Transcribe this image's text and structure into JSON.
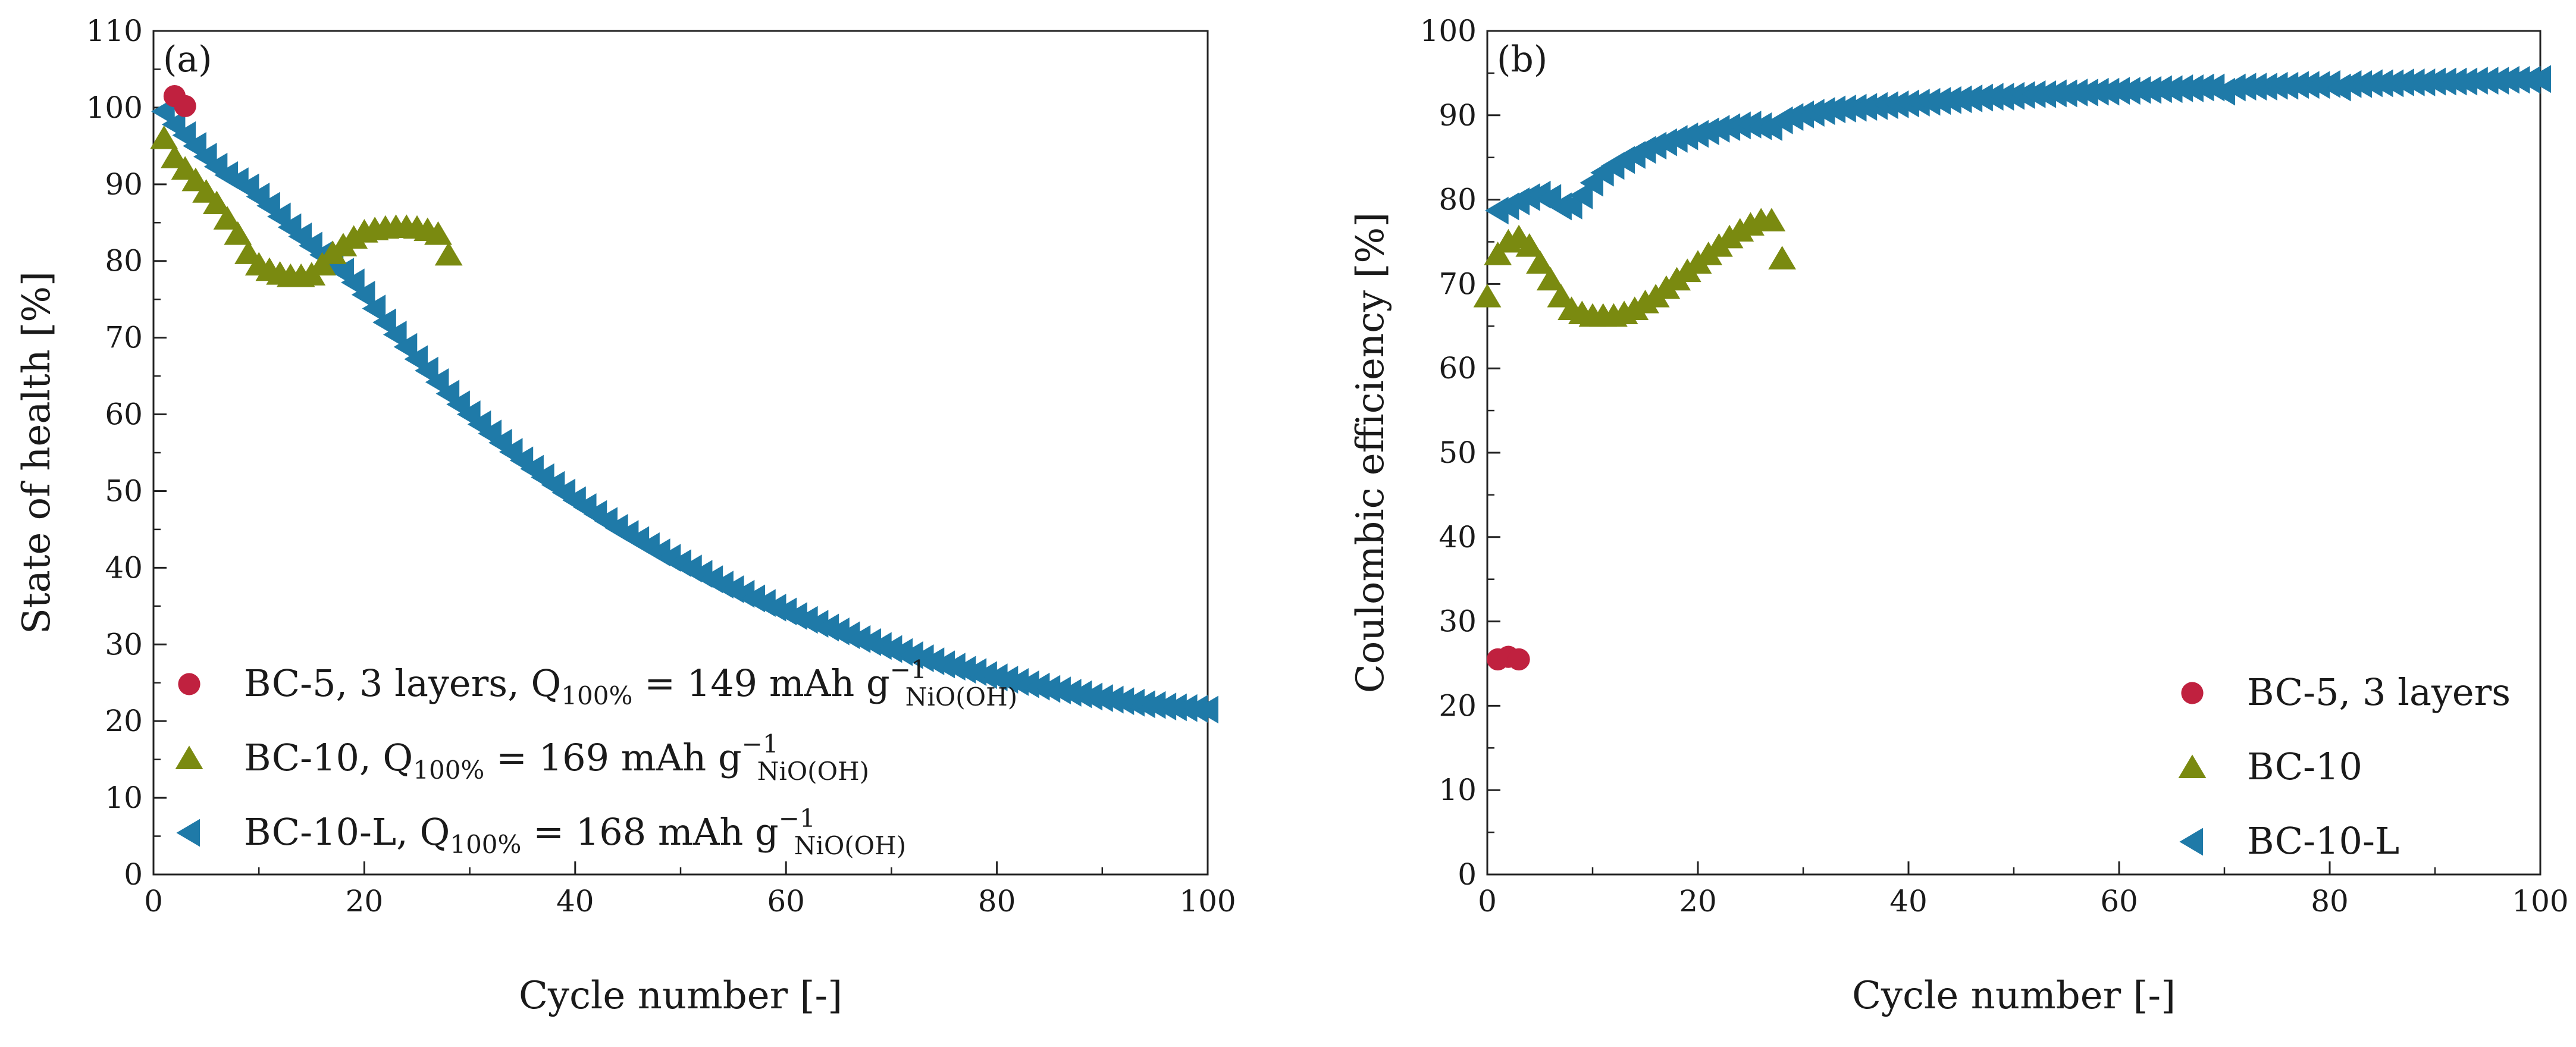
{
  "colors": {
    "bc5": "#c0213f",
    "bc10": "#7a8a10",
    "bc10l": "#1f7aa8"
  },
  "chart_data": [
    {
      "type": "scatter",
      "panel_label": "(a)",
      "xlabel": "Cycle number [-]",
      "ylabel": "State of health [%]",
      "xlim": [
        0,
        100
      ],
      "ylim": [
        0,
        110
      ],
      "xticks": [
        0,
        20,
        40,
        60,
        80,
        100
      ],
      "yticks": [
        0,
        10,
        20,
        30,
        40,
        50,
        60,
        70,
        80,
        90,
        100,
        110
      ],
      "legend_position": "bottom-left",
      "series": [
        {
          "name": "BC-5, 3 layers",
          "legend": {
            "prefix": "BC-5, 3 layers, Q",
            "sub1": "100%",
            "mid": " = 149 mAh g",
            "sup": "−1",
            "sub2": "NiO(OH)"
          },
          "marker": "circle",
          "color": "#c0213f",
          "x": [
            2,
            3
          ],
          "y": [
            101.5,
            100.2
          ]
        },
        {
          "name": "BC-10",
          "legend": {
            "prefix": "BC-10, Q",
            "sub1": "100%",
            "mid": " = 169 mAh g",
            "sup": "−1",
            "sub2": "NiO(OH)"
          },
          "marker": "triangle-up",
          "color": "#7a8a10",
          "x": [
            1,
            2,
            3,
            4,
            5,
            6,
            7,
            8,
            9,
            10,
            11,
            12,
            13,
            14,
            15,
            16,
            17,
            18,
            19,
            20,
            21,
            22,
            23,
            24,
            25,
            26,
            27,
            28
          ],
          "y": [
            96,
            93.5,
            92,
            90.5,
            89,
            87.5,
            85.5,
            83.5,
            81,
            79.5,
            78.8,
            78.3,
            78,
            78,
            78.2,
            79.5,
            81,
            82,
            83,
            83.8,
            84.1,
            84.3,
            84.4,
            84.4,
            84.3,
            84,
            83.5,
            80.8
          ]
        },
        {
          "name": "BC-10-L",
          "legend": {
            "prefix": "BC-10-L, Q",
            "sub1": "100%",
            "mid": " = 168 mAh g",
            "sup": "−1",
            "sub2": "NiO(OH)"
          },
          "marker": "triangle-left",
          "color": "#1f7aa8",
          "x": [
            1,
            2,
            3,
            4,
            5,
            6,
            7,
            8,
            9,
            10,
            11,
            12,
            13,
            14,
            15,
            16,
            17,
            18,
            19,
            20,
            21,
            22,
            23,
            24,
            25,
            26,
            27,
            28,
            29,
            30,
            31,
            32,
            33,
            34,
            35,
            36,
            37,
            38,
            39,
            40,
            41,
            42,
            43,
            44,
            45,
            46,
            47,
            48,
            49,
            50,
            51,
            52,
            53,
            54,
            55,
            56,
            57,
            58,
            59,
            60,
            61,
            62,
            63,
            64,
            65,
            66,
            67,
            68,
            69,
            70,
            71,
            72,
            73,
            74,
            75,
            76,
            77,
            78,
            79,
            80,
            81,
            82,
            83,
            84,
            85,
            86,
            87,
            88,
            89,
            90,
            91,
            92,
            93,
            94,
            95,
            96,
            97,
            98,
            99,
            100
          ],
          "y": [
            99.5,
            97.8,
            96.4,
            95,
            93.6,
            92.3,
            91.2,
            90.4,
            89.6,
            88.4,
            87.2,
            85.8,
            84.4,
            83.2,
            82,
            80.8,
            79.8,
            78.6,
            77.2,
            75.6,
            73.8,
            72,
            70.4,
            68.8,
            67.2,
            65.7,
            64.2,
            62.7,
            61.3,
            60,
            58.7,
            57.5,
            56.3,
            55.1,
            54,
            52.9,
            51.8,
            50.8,
            49.8,
            48.8,
            47.9,
            47,
            46.1,
            45.2,
            44.4,
            43.6,
            42.8,
            42,
            41.3,
            40.6,
            39.9,
            39.2,
            38.5,
            37.8,
            37.2,
            36.6,
            36,
            35.4,
            34.8,
            34.3,
            33.7,
            33.2,
            32.7,
            32.2,
            31.7,
            31.2,
            30.7,
            30.3,
            29.8,
            29.4,
            29,
            28.6,
            28.2,
            27.8,
            27.4,
            27.1,
            26.7,
            26.4,
            26,
            25.7,
            25.4,
            25.1,
            24.8,
            24.5,
            24.2,
            24,
            23.7,
            23.5,
            23.2,
            23,
            22.8,
            22.6,
            22.4,
            22.2,
            22.1,
            21.9,
            21.8,
            21.7,
            21.6,
            21.5
          ]
        }
      ]
    },
    {
      "type": "scatter",
      "panel_label": "(b)",
      "xlabel": "Cycle number [-]",
      "ylabel": "Coulombic efficiency [%]",
      "xlim": [
        0,
        100
      ],
      "ylim": [
        0,
        100
      ],
      "xticks": [
        0,
        20,
        40,
        60,
        80,
        100
      ],
      "yticks": [
        0,
        10,
        20,
        30,
        40,
        50,
        60,
        70,
        80,
        90,
        100
      ],
      "legend_position": "bottom-right",
      "series": [
        {
          "name": "BC-5, 3 layers",
          "legend": {
            "prefix": "BC-5, 3 layers"
          },
          "marker": "circle",
          "color": "#c0213f",
          "x": [
            1,
            2,
            3
          ],
          "y": [
            25.5,
            25.8,
            25.5
          ]
        },
        {
          "name": "BC-10",
          "legend": {
            "prefix": "BC-10"
          },
          "marker": "triangle-up",
          "color": "#7a8a10",
          "x": [
            0,
            1,
            2,
            3,
            4,
            5,
            6,
            7,
            8,
            9,
            10,
            11,
            12,
            13,
            14,
            15,
            16,
            17,
            18,
            19,
            20,
            21,
            22,
            23,
            24,
            25,
            26,
            27,
            28
          ],
          "y": [
            68.5,
            73.5,
            75,
            75.5,
            74.5,
            72.5,
            70.5,
            68.5,
            67,
            66.5,
            66.2,
            66.2,
            66.2,
            66.5,
            67,
            67.8,
            68.5,
            69.5,
            70.5,
            71.5,
            72.5,
            73.5,
            74.5,
            75.5,
            76.3,
            77,
            77.5,
            77.5,
            73
          ]
        },
        {
          "name": "BC-10-L",
          "legend": {
            "prefix": "BC-10-L"
          },
          "marker": "triangle-left",
          "color": "#1f7aa8",
          "x": [
            1,
            2,
            3,
            4,
            5,
            6,
            7,
            8,
            9,
            10,
            11,
            12,
            13,
            14,
            15,
            16,
            17,
            18,
            19,
            20,
            21,
            22,
            23,
            24,
            25,
            26,
            27,
            28,
            29,
            30,
            31,
            32,
            33,
            34,
            35,
            36,
            37,
            38,
            39,
            40,
            41,
            42,
            43,
            44,
            45,
            46,
            47,
            48,
            49,
            50,
            51,
            52,
            53,
            54,
            55,
            56,
            57,
            58,
            59,
            60,
            61,
            62,
            63,
            64,
            65,
            66,
            67,
            68,
            69,
            70,
            71,
            72,
            73,
            74,
            75,
            76,
            77,
            78,
            79,
            80,
            81,
            82,
            83,
            84,
            85,
            86,
            87,
            88,
            89,
            90,
            91,
            92,
            93,
            94,
            95,
            96,
            97,
            98,
            99,
            100
          ],
          "y": [
            78.7,
            79.2,
            79.8,
            80.3,
            80.6,
            80.2,
            79.2,
            79.3,
            80.5,
            82,
            83.2,
            84,
            84.7,
            85.3,
            85.9,
            86.4,
            86.8,
            87.2,
            87.5,
            87.8,
            88.1,
            88.4,
            88.6,
            88.8,
            88.9,
            88.7,
            88.6,
            89.4,
            89.8,
            90.1,
            90.3,
            90.5,
            90.7,
            90.8,
            90.9,
            91,
            91.1,
            91.2,
            91.3,
            91.4,
            91.5,
            91.6,
            91.7,
            91.8,
            91.9,
            92,
            92.1,
            92.2,
            92.2,
            92.3,
            92.4,
            92.5,
            92.5,
            92.6,
            92.6,
            92.7,
            92.7,
            92.8,
            92.8,
            92.9,
            92.9,
            93,
            93,
            93.1,
            93.1,
            93.2,
            93.2,
            93.3,
            93.3,
            92.8,
            93.3,
            93.4,
            93.4,
            93.4,
            93.5,
            93.5,
            93.6,
            93.6,
            93.6,
            93.7,
            93.3,
            93.7,
            93.7,
            93.8,
            93.8,
            93.8,
            93.9,
            93.9,
            93.9,
            94,
            94,
            94,
            94,
            94.1,
            94.1,
            94.1,
            94.2,
            94.2,
            94.2,
            94.3
          ]
        }
      ]
    }
  ]
}
